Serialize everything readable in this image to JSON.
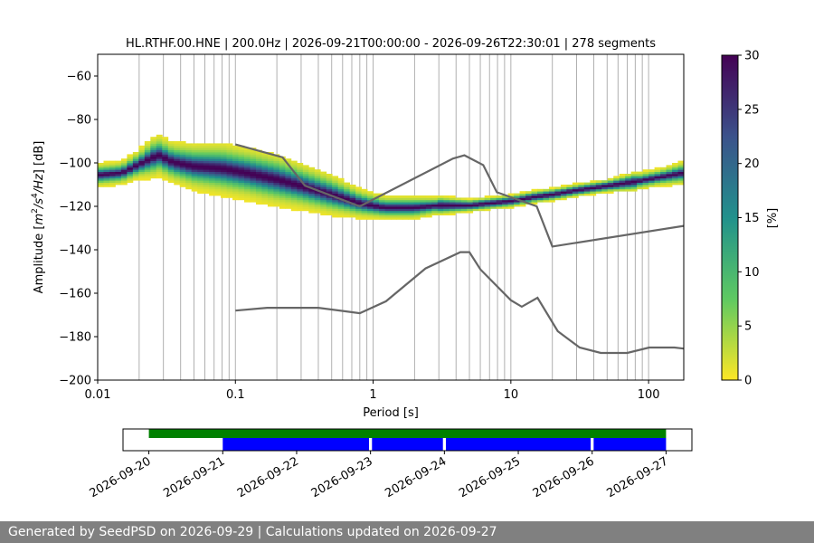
{
  "chart_data": [
    {
      "type": "heatmap",
      "title": "HL.RTHF.00.HNE | 200.0Hz | 2026-09-21T00:00:00 - 2026-09-26T22:30:01 | 278 segments",
      "xlabel": "Period [s]",
      "ylabel_parts": [
        "Amplitude [",
        "m",
        "2",
        "/",
        "s",
        "4",
        "/",
        "Hz",
        "] [dB]"
      ],
      "x_scale": "log",
      "xlim": [
        0.01,
        180
      ],
      "ylim": [
        -200,
        -50
      ],
      "x_ticks": [
        {
          "value": 0.01,
          "label": "0.01"
        },
        {
          "value": 0.1,
          "label": "0.1"
        },
        {
          "value": 1,
          "label": "1"
        },
        {
          "value": 10,
          "label": "10"
        },
        {
          "value": 100,
          "label": "100"
        }
      ],
      "y_ticks": [
        {
          "value": -60,
          "label": "−60"
        },
        {
          "value": -80,
          "label": "−80"
        },
        {
          "value": -100,
          "label": "−100"
        },
        {
          "value": -120,
          "label": "−120"
        },
        {
          "value": -140,
          "label": "−140"
        },
        {
          "value": -160,
          "label": "−160"
        },
        {
          "value": -180,
          "label": "−180"
        },
        {
          "value": -200,
          "label": "−200"
        }
      ],
      "grid": "x-major-and-minor",
      "psd_mode": {
        "periods": [
          0.01,
          0.015,
          0.02,
          0.025,
          0.028,
          0.035,
          0.05,
          0.08,
          0.12,
          0.2,
          0.3,
          0.5,
          0.8,
          1.2,
          2,
          3,
          5,
          7,
          10,
          15,
          20,
          30,
          50,
          80,
          120,
          180
        ],
        "db": [
          -106,
          -105,
          -101,
          -98,
          -97,
          -100,
          -102,
          -103,
          -105,
          -108,
          -111,
          -115,
          -119,
          -121,
          -121,
          -120,
          -120,
          -119,
          -118,
          -116,
          -115,
          -113,
          -111,
          -109,
          -107,
          -105
        ],
        "spread": [
          4,
          4,
          5,
          7,
          7,
          7,
          8,
          9,
          9,
          9,
          8,
          7,
          5,
          4,
          4,
          3,
          2,
          2,
          2,
          2,
          2,
          2,
          2,
          3,
          3,
          4
        ]
      },
      "colorbar": {
        "label": "[%]",
        "range": [
          0,
          30
        ],
        "ticks": [
          0,
          5,
          10,
          15,
          20,
          25,
          30
        ],
        "tick_labels": [
          "0",
          "5",
          "10",
          "15",
          "20",
          "25",
          "30"
        ],
        "colors": [
          "#fde725",
          "#5ec962",
          "#21918c",
          "#3b528b",
          "#440154"
        ]
      },
      "noise_models": [
        {
          "periods": [
            0.1,
            0.22,
            0.32,
            0.8,
            3.8,
            4.6,
            6.3,
            7.9,
            15.4,
            20,
            180
          ],
          "db": [
            -91.5,
            -97.4,
            -110.5,
            -120,
            -98,
            -96.5,
            -101,
            -113.5,
            -120,
            -138.5,
            -129
          ],
          "color": "#666666"
        },
        {
          "periods": [
            0.1,
            0.17,
            0.4,
            0.8,
            1.24,
            2.4,
            4.3,
            5,
            6,
            10,
            12,
            15.6,
            21.9,
            31.6,
            45,
            70,
            101,
            154,
            180
          ],
          "db": [
            -168,
            -166.7,
            -166.7,
            -169.2,
            -163.7,
            -148.6,
            -141.1,
            -141.1,
            -149,
            -163.2,
            -166.2,
            -162.1,
            -177.5,
            -185,
            -187.5,
            -187.5,
            -185,
            -185,
            -185.5
          ],
          "color": "#666666"
        }
      ]
    },
    {
      "type": "timeline",
      "ticks": [
        "2026-09-20",
        "2026-09-21",
        "2026-09-22",
        "2026-09-23",
        "2026-09-24",
        "2026-09-25",
        "2026-09-26",
        "2026-09-27"
      ],
      "xlim": [
        -0.35,
        7.35
      ],
      "data_range": {
        "start": 0,
        "end": 7,
        "color": "#008000"
      },
      "computed_segments": [
        {
          "start": 1,
          "end": 2.98,
          "color": "#0000ff"
        },
        {
          "start": 3.02,
          "end": 3.98,
          "color": "#0000ff"
        },
        {
          "start": 4.02,
          "end": 5.98,
          "color": "#0000ff"
        },
        {
          "start": 6.02,
          "end": 7,
          "color": "#0000ff"
        }
      ]
    }
  ],
  "footer": {
    "text": "Generated by SeedPSD on 2026-09-29 | Calculations updated on 2026-09-27"
  }
}
